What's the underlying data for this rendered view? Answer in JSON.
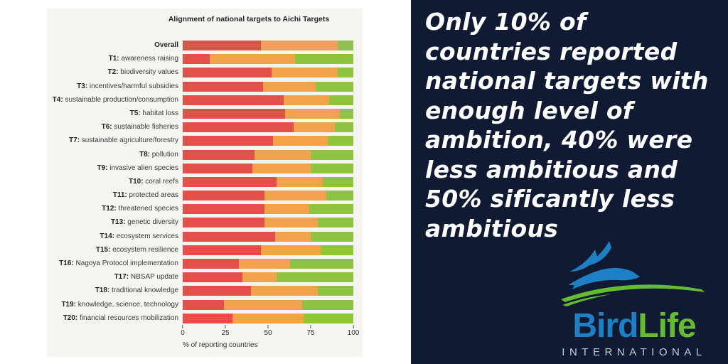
{
  "colors": {
    "page_bg": "#ffffff",
    "chart_panel_bg": "#f7f5f1",
    "navy": "#101b33",
    "quote_text": "#ffffff",
    "chart_text": "#3a3a3a"
  },
  "chart_data": {
    "type": "bar",
    "orientation": "horizontal",
    "stacked": true,
    "title": "Alignment of national targets to Aichi Targets",
    "xlabel": "% of reporting countries",
    "xlim": [
      0,
      100
    ],
    "x_ticks": [
      0,
      25,
      50,
      75,
      100
    ],
    "grid": false,
    "legend": "none",
    "categories": [
      "Overall",
      "T1: awareness raising",
      "T2: biodiversity values",
      "T3: incentives/harmful subsidies",
      "T4: sustainable production/consumption",
      "T5: habitat loss",
      "T6: sustainable fisheries",
      "T7: sustainable agriculture/forestry",
      "T8: pollution",
      "T9: invasive alien species",
      "T10: coral reefs",
      "T11: protected areas",
      "T12: threatened species",
      "T13: genetic diversity",
      "T14: ecosystem services",
      "T15: ecosystem resilience",
      "T16: Nagoya Protocol implementation",
      "T17: NBSAP update",
      "T18: traditional knowledge",
      "T19: knowledge, science, technology",
      "T20: financial resources mobilization"
    ],
    "series": [
      {
        "name": "red",
        "color": "#e25049",
        "values": [
          46,
          16,
          52,
          47,
          59,
          60,
          65,
          53,
          42,
          41,
          55,
          48,
          48,
          48,
          54,
          46,
          33,
          35,
          40,
          24,
          29
        ]
      },
      {
        "name": "orange",
        "color": "#f2a24a",
        "values": [
          45,
          50,
          39,
          31,
          27,
          32,
          24,
          32,
          33,
          34,
          27,
          36,
          26,
          31,
          21,
          35,
          30,
          20,
          39,
          46,
          42
        ]
      },
      {
        "name": "green",
        "color": "#8fc342",
        "values": [
          9,
          34,
          9,
          22,
          14,
          8,
          11,
          15,
          25,
          25,
          18,
          16,
          26,
          21,
          25,
          19,
          37,
          45,
          21,
          30,
          29
        ]
      }
    ]
  },
  "quote": {
    "full": "Only 10% of countries reported national targets with enough level of ambition, 40% were less ambitious and 50% sificantly less ambitious",
    "lines": [
      "Only 10% of",
      "countries reported",
      "national targets with",
      "enough level of",
      "ambition, 40% were",
      "less ambitious and",
      "50% sificantly less",
      "ambitious"
    ]
  },
  "logo": {
    "brand_blue": "Bird",
    "brand_green": "Life",
    "subtitle": "INTERNATIONAL",
    "blue": "#1d80c4",
    "green": "#64bc31",
    "subtitle_color": "#c5cad3"
  }
}
